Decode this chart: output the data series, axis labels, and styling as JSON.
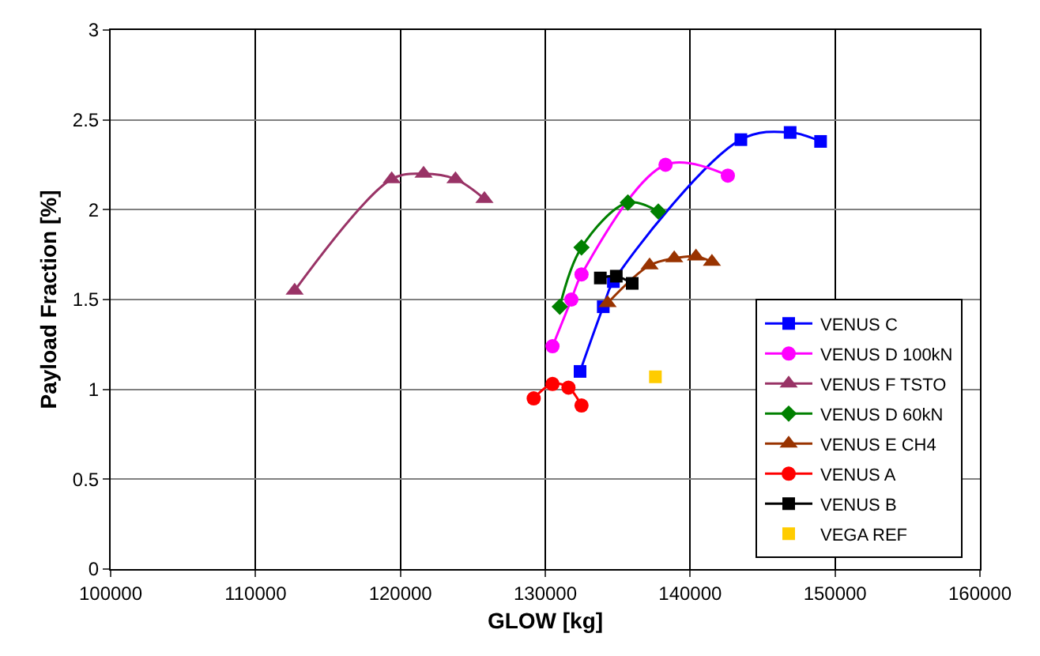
{
  "chart_data": {
    "type": "line",
    "xlabel": "GLOW [kg]",
    "ylabel": "Payload Fraction [%]",
    "xlim": [
      100000,
      160000
    ],
    "xticks": [
      100000,
      110000,
      120000,
      130000,
      140000,
      150000,
      160000
    ],
    "ylim": [
      0,
      3
    ],
    "yticks": [
      0,
      0.5,
      1,
      1.5,
      2,
      2.5,
      3
    ],
    "grid": true,
    "legend": "bottom right",
    "series": [
      {
        "name": "VENUS C",
        "color": "#0000ff",
        "marker": "square",
        "x": [
          132400,
          134000,
          134700,
          143500,
          146900,
          149000
        ],
        "values": [
          1.1,
          1.46,
          1.6,
          2.39,
          2.43,
          2.38
        ]
      },
      {
        "name": "VENUS D 100kN",
        "color": "#ff00ff",
        "marker": "circle",
        "x": [
          130500,
          131800,
          132500,
          138300,
          142600
        ],
        "values": [
          1.24,
          1.5,
          1.64,
          2.25,
          2.19
        ]
      },
      {
        "name": "VENUS F TSTO",
        "color": "#993366",
        "marker": "triangle",
        "x": [
          112700,
          119400,
          121600,
          123800,
          125800
        ],
        "values": [
          1.55,
          2.17,
          2.2,
          2.17,
          2.06
        ]
      },
      {
        "name": "VENUS D 60kN",
        "color": "#008000",
        "marker": "diamond",
        "x": [
          131000,
          132500,
          135700,
          137800
        ],
        "values": [
          1.46,
          1.79,
          2.04,
          1.99
        ]
      },
      {
        "name": "VENUS E CH4",
        "color": "#993300",
        "marker": "triangle",
        "x": [
          134300,
          137200,
          138900,
          140400,
          141500
        ],
        "values": [
          1.48,
          1.69,
          1.73,
          1.74,
          1.71
        ]
      },
      {
        "name": "VENUS A",
        "color": "#ff0000",
        "marker": "circle",
        "x": [
          129200,
          130500,
          131600,
          132500
        ],
        "values": [
          0.95,
          1.03,
          1.01,
          0.91
        ]
      },
      {
        "name": "VENUS B",
        "color": "#000000",
        "marker": "square",
        "x": [
          133800,
          134900,
          136000
        ],
        "values": [
          1.62,
          1.63,
          1.59
        ]
      },
      {
        "name": "VEGA REF",
        "color": "#ffcc00",
        "marker": "square",
        "type": "scatter",
        "x": [
          137600
        ],
        "values": [
          1.07
        ]
      }
    ]
  }
}
